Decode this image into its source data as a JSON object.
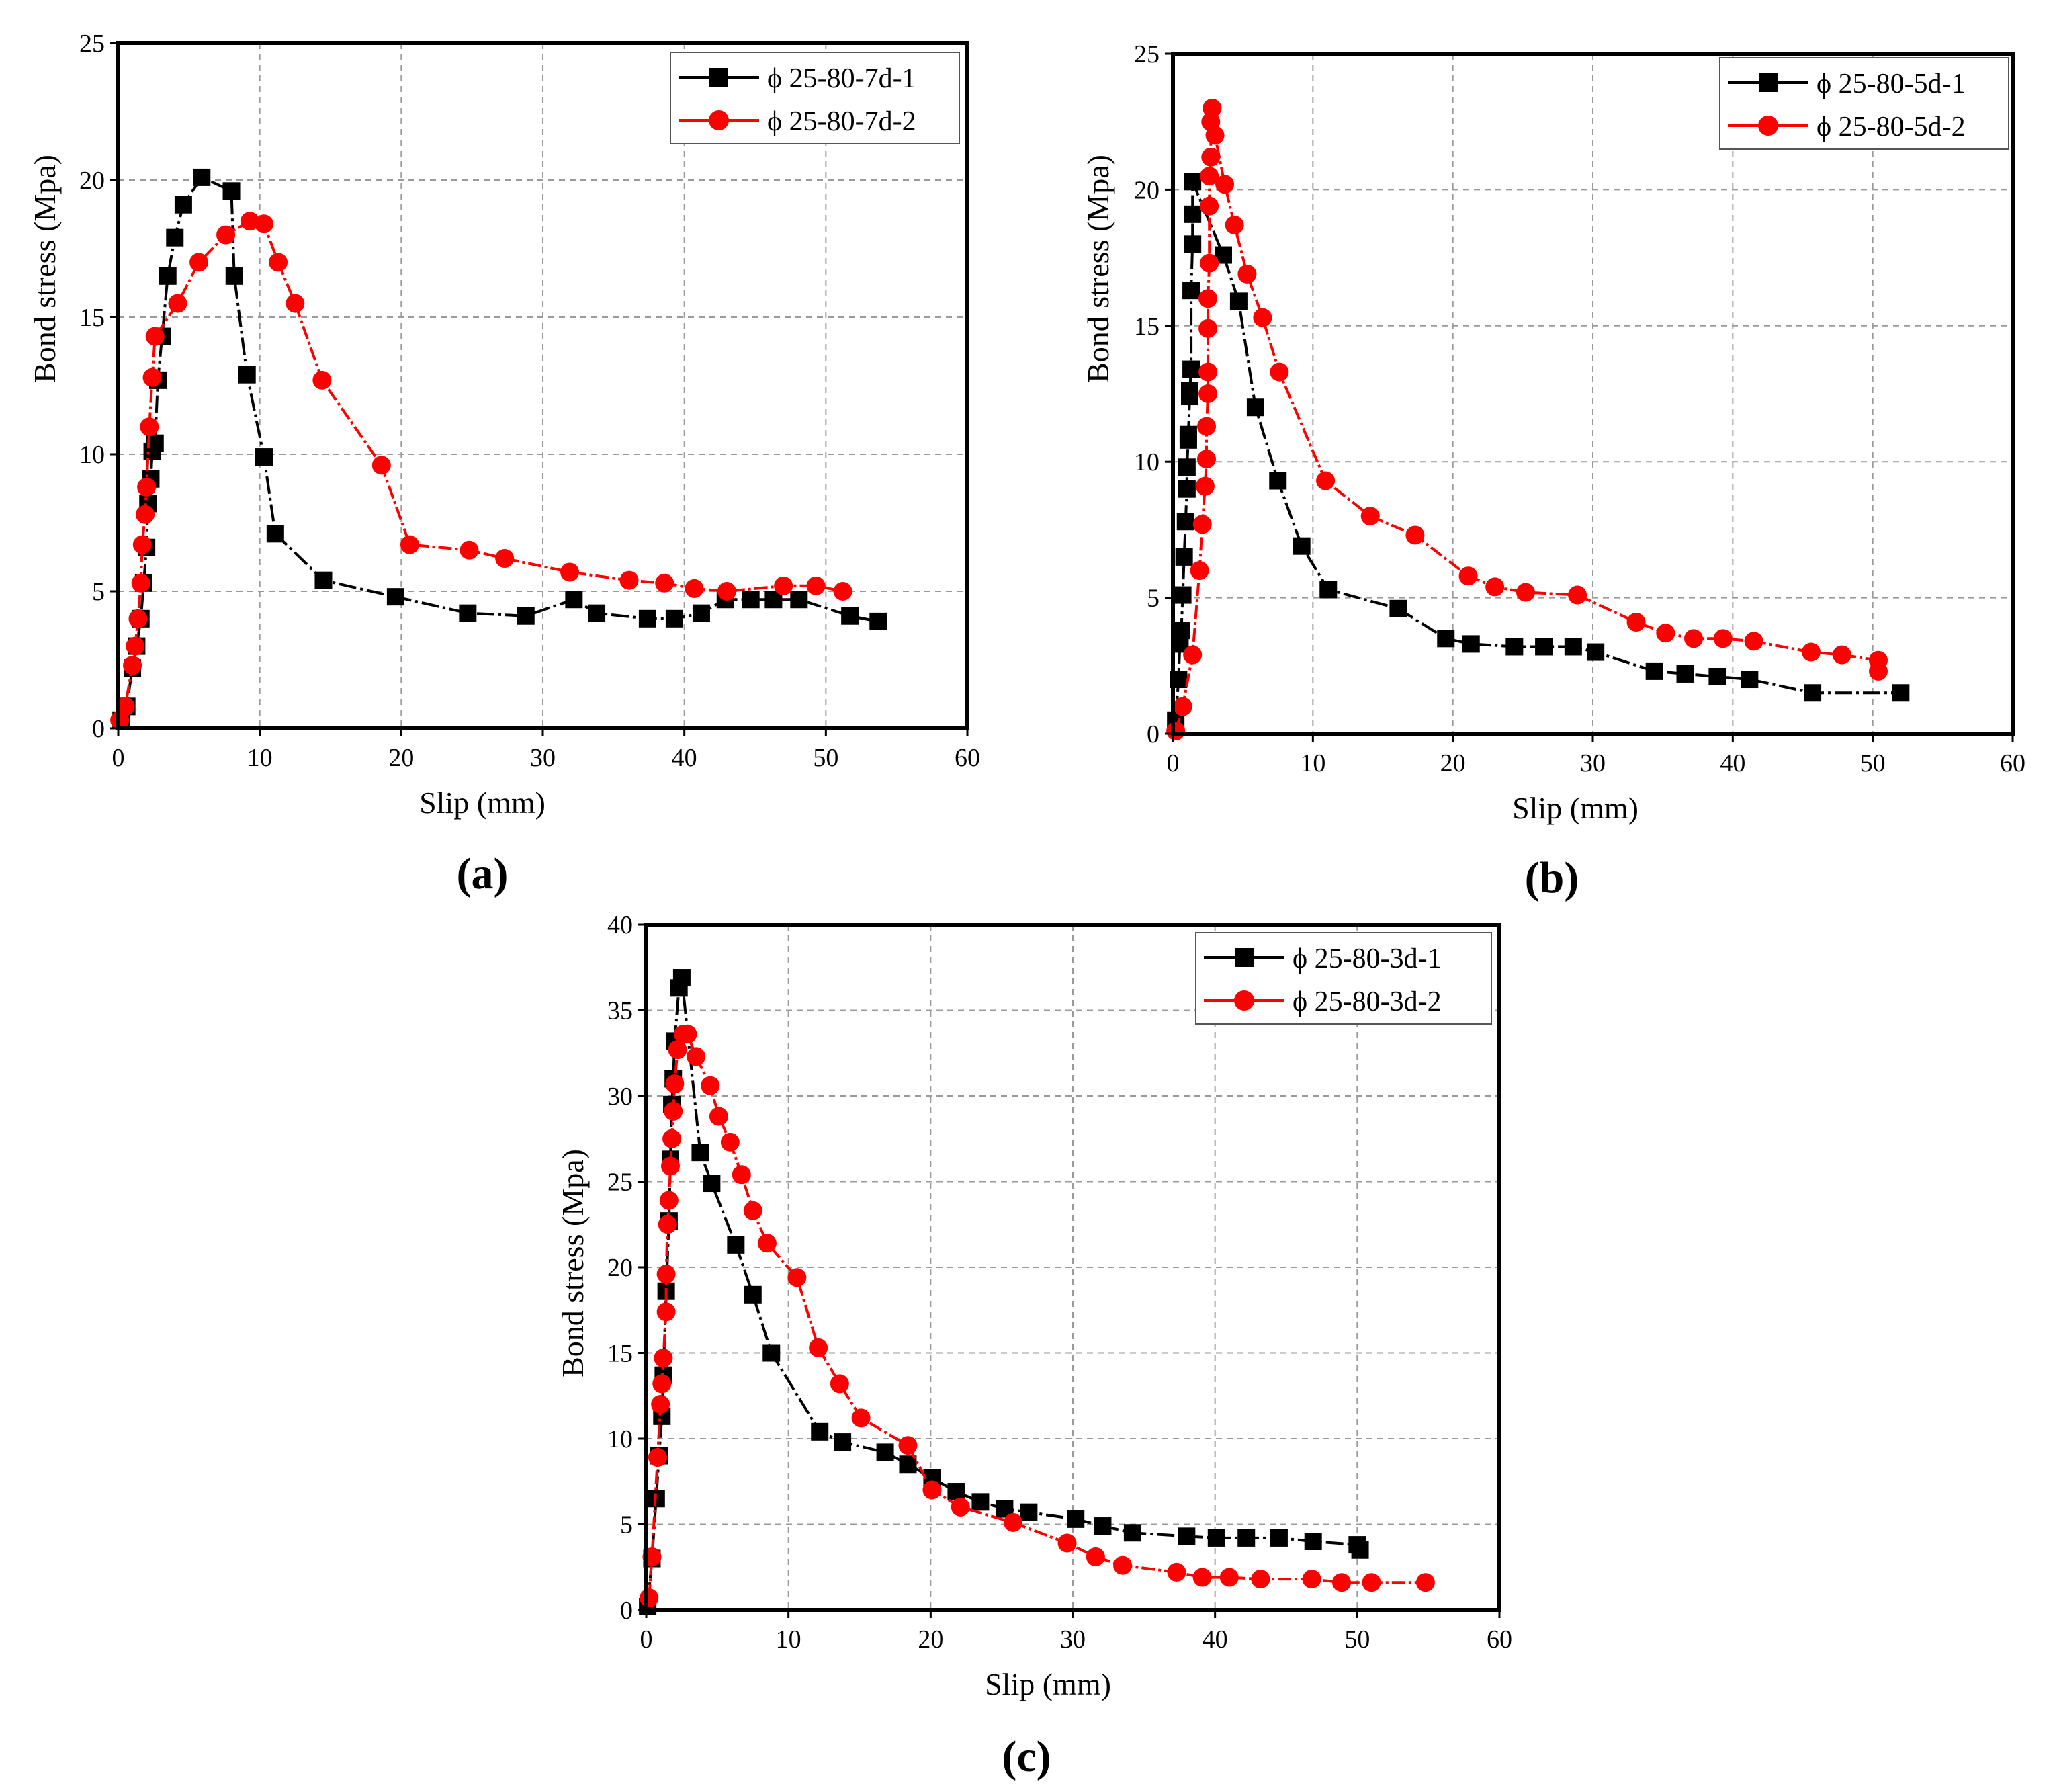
{
  "figure": {
    "panels": [
      {
        "id": "a",
        "label": "(a)",
        "xlabel": "Slip  (mm)",
        "ylabel": "Bond stress (Mpa)",
        "xticks": [
          "0",
          "10",
          "20",
          "30",
          "40",
          "50",
          "60"
        ],
        "yticks": [
          "0",
          "5",
          "10",
          "15",
          "20",
          "25"
        ],
        "legend": [
          "ϕ 25-80-7d-1",
          "ϕ 25-80-7d-2"
        ]
      },
      {
        "id": "b",
        "label": "(b)",
        "xlabel": "Slip  (mm)",
        "ylabel": "Bond stress (Mpa)",
        "xticks": [
          "0",
          "10",
          "20",
          "30",
          "40",
          "50",
          "60"
        ],
        "yticks": [
          "0",
          "5",
          "10",
          "15",
          "20",
          "25"
        ],
        "legend": [
          "ϕ 25-80-5d-1",
          "ϕ 25-80-5d-2"
        ]
      },
      {
        "id": "c",
        "label": "(c)",
        "xlabel": "Slip  (mm)",
        "ylabel": "Bond stress (Mpa)",
        "xticks": [
          "0",
          "10",
          "20",
          "30",
          "40",
          "50",
          "60"
        ],
        "yticks": [
          "0",
          "5",
          "10",
          "15",
          "20",
          "25",
          "30",
          "35",
          "40"
        ],
        "legend": [
          "ϕ 25-80-3d-1",
          "ϕ 25-80-3d-2"
        ]
      }
    ]
  },
  "colors": {
    "series1": "#000000",
    "series2": "#ff0000",
    "grid": "#9a9a9a"
  },
  "chart_data": [
    {
      "type": "line",
      "panel": "a",
      "title": "",
      "xlabel": "Slip  (mm)",
      "ylabel": "Bond stress (Mpa)",
      "xlim": [
        0,
        60
      ],
      "ylim": [
        0,
        25
      ],
      "grid": true,
      "legend_position": "top-right",
      "series": [
        {
          "name": "ϕ 25-80-7d-1",
          "marker": "square",
          "x": [
            0.2,
            0.6,
            1.0,
            1.3,
            1.6,
            1.8,
            2.0,
            2.1,
            2.3,
            2.4,
            2.6,
            2.8,
            3.1,
            3.5,
            4.0,
            4.6,
            5.9,
            8.0,
            8.2,
            9.1,
            10.3,
            11.1,
            14.5,
            19.6,
            24.7,
            28.8,
            32.2,
            33.8,
            37.4,
            39.3,
            41.2,
            42.9,
            44.7,
            46.3,
            48.1,
            51.7,
            53.7
          ],
          "y": [
            0.3,
            0.8,
            2.2,
            3.0,
            4.0,
            5.3,
            6.6,
            8.2,
            9.1,
            10.1,
            10.4,
            12.7,
            14.3,
            16.5,
            17.9,
            19.1,
            20.1,
            19.6,
            16.5,
            12.9,
            9.9,
            7.1,
            5.4,
            4.8,
            4.2,
            4.1,
            4.7,
            4.2,
            4.0,
            4.0,
            4.2,
            4.7,
            4.7,
            4.7,
            4.7,
            4.1,
            3.9
          ]
        },
        {
          "name": "ϕ 25-80-7d-2",
          "marker": "circle",
          "x": [
            0.1,
            0.5,
            1.0,
            1.2,
            1.4,
            1.6,
            1.7,
            1.9,
            2.0,
            2.2,
            2.4,
            2.6,
            4.2,
            5.7,
            7.6,
            9.3,
            10.3,
            11.3,
            12.5,
            14.4,
            18.6,
            20.6,
            24.8,
            27.3,
            31.9,
            36.1,
            38.6,
            40.7,
            43.0,
            47.0,
            49.3,
            51.2
          ],
          "y": [
            0.3,
            0.8,
            2.3,
            3.0,
            4.0,
            5.3,
            6.7,
            7.8,
            8.8,
            11.0,
            12.8,
            14.3,
            15.5,
            17.0,
            18.0,
            18.5,
            18.4,
            17.0,
            15.5,
            12.7,
            9.6,
            6.7,
            6.5,
            6.2,
            5.7,
            5.4,
            5.3,
            5.1,
            5.0,
            5.2,
            5.2,
            5.0
          ]
        }
      ]
    },
    {
      "type": "line",
      "panel": "b",
      "title": "",
      "xlabel": "Slip  (mm)",
      "ylabel": "Bond stress (Mpa)",
      "xlim": [
        0,
        60
      ],
      "ylim": [
        0,
        25
      ],
      "grid": true,
      "legend_position": "top-right",
      "series": [
        {
          "name": "ϕ 25-80-5d-1",
          "marker": "square",
          "x": [
            0.2,
            0.4,
            0.5,
            0.6,
            0.7,
            0.8,
            0.9,
            1.0,
            1.0,
            1.1,
            1.1,
            1.2,
            1.2,
            1.3,
            1.3,
            1.4,
            1.4,
            1.4,
            3.6,
            4.7,
            5.9,
            7.5,
            9.2,
            11.1,
            16.1,
            19.5,
            21.3,
            24.4,
            26.5,
            28.6,
            30.2,
            34.4,
            36.6,
            38.9,
            41.2,
            45.7,
            52.0
          ],
          "y": [
            0.5,
            2.0,
            3.3,
            3.8,
            5.1,
            6.5,
            7.8,
            9.0,
            9.8,
            10.8,
            11.0,
            12.4,
            12.6,
            13.4,
            16.3,
            18.0,
            19.1,
            20.3,
            17.6,
            15.9,
            12.0,
            9.3,
            6.9,
            5.3,
            4.6,
            3.5,
            3.3,
            3.2,
            3.2,
            3.2,
            3.0,
            2.3,
            2.2,
            2.1,
            2.0,
            1.5,
            1.5
          ]
        },
        {
          "name": "ϕ 25-80-5d-2",
          "marker": "circle",
          "x": [
            0.2,
            0.7,
            1.4,
            1.9,
            2.1,
            2.3,
            2.4,
            2.4,
            2.5,
            2.5,
            2.5,
            2.5,
            2.6,
            2.6,
            2.6,
            2.7,
            2.7,
            2.8,
            3.0,
            3.7,
            4.4,
            5.3,
            6.4,
            7.6,
            10.9,
            14.1,
            17.3,
            21.1,
            23.0,
            25.2,
            28.9,
            33.1,
            35.2,
            37.2,
            39.3,
            41.5,
            45.6,
            47.8,
            50.4,
            50.4
          ],
          "y": [
            0.1,
            1.0,
            2.9,
            6.0,
            7.7,
            9.1,
            10.1,
            11.3,
            12.5,
            13.3,
            14.9,
            16.0,
            17.3,
            19.4,
            20.5,
            21.2,
            22.5,
            23.0,
            22.0,
            20.2,
            18.7,
            16.9,
            15.3,
            13.3,
            9.3,
            8.0,
            7.3,
            5.8,
            5.4,
            5.2,
            5.1,
            4.1,
            3.7,
            3.5,
            3.5,
            3.4,
            3.0,
            2.9,
            2.7,
            2.3
          ]
        }
      ]
    },
    {
      "type": "line",
      "panel": "c",
      "title": "",
      "xlabel": "Slip  (mm)",
      "ylabel": "Bond stress (Mpa)",
      "xlim": [
        0,
        60
      ],
      "ylim": [
        0,
        40
      ],
      "grid": true,
      "legend_position": "top-right",
      "series": [
        {
          "name": "ϕ 25-80-3d-1",
          "marker": "square",
          "x": [
            0.1,
            0.4,
            0.7,
            0.9,
            1.1,
            1.2,
            1.4,
            1.6,
            1.7,
            1.8,
            1.9,
            2.0,
            2.3,
            2.5,
            3.8,
            4.6,
            6.3,
            7.5,
            8.8,
            12.2,
            13.8,
            16.8,
            18.4,
            20.1,
            21.8,
            23.5,
            25.2,
            26.9,
            30.2,
            32.1,
            34.2,
            38.0,
            40.1,
            42.2,
            44.5,
            46.9,
            50.0,
            50.2
          ],
          "y": [
            0.2,
            3.0,
            6.5,
            9.0,
            11.3,
            13.7,
            18.6,
            22.7,
            26.3,
            29.5,
            31.0,
            33.2,
            36.3,
            36.9,
            26.7,
            24.9,
            21.3,
            18.4,
            15.0,
            10.4,
            9.8,
            9.2,
            8.5,
            7.7,
            6.9,
            6.3,
            5.9,
            5.7,
            5.3,
            4.9,
            4.5,
            4.3,
            4.2,
            4.2,
            4.2,
            4.0,
            3.8,
            3.5
          ]
        },
        {
          "name": "ϕ 25-80-3d-2",
          "marker": "circle",
          "x": [
            0.2,
            0.4,
            0.8,
            1.0,
            1.1,
            1.2,
            1.4,
            1.4,
            1.5,
            1.6,
            1.7,
            1.8,
            1.9,
            2.0,
            2.2,
            2.6,
            2.9,
            3.5,
            4.5,
            5.1,
            5.9,
            6.7,
            7.5,
            8.5,
            10.6,
            12.1,
            13.6,
            15.1,
            18.4,
            20.1,
            22.1,
            25.8,
            29.6,
            31.6,
            33.5,
            37.3,
            39.1,
            41.0,
            43.2,
            46.8,
            48.9,
            51.0,
            54.8
          ],
          "y": [
            0.7,
            3.1,
            8.9,
            12.0,
            13.2,
            14.7,
            17.4,
            19.6,
            22.5,
            23.9,
            25.9,
            27.5,
            29.1,
            30.7,
            32.7,
            33.6,
            33.6,
            32.3,
            30.6,
            28.8,
            27.3,
            25.4,
            23.3,
            21.4,
            19.4,
            15.3,
            13.2,
            11.2,
            9.6,
            7.0,
            6.0,
            5.1,
            3.9,
            3.1,
            2.6,
            2.2,
            1.9,
            1.9,
            1.8,
            1.8,
            1.6,
            1.6,
            1.6
          ]
        }
      ]
    }
  ]
}
